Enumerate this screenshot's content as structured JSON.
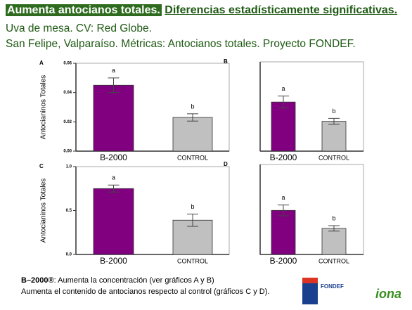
{
  "slide": {
    "title_highlight": "Aumenta antocianos totales.",
    "title_rest": "Diferencias estadísticamente significativas.",
    "line1": "Uva de mesa. CV: Red Globe.",
    "line2": "San Felipe, Valparaíso. Métricas: Antocianos totales. Proyecto FONDEF.",
    "note_bold": "B–2000®",
    "note_1": ": Aumenta la concentración (ver gráficos A y B)",
    "note_2": "Aumenta el contenido de antocianos respecto al control (gráficos C y D).",
    "logo_fondef": "FONDEF",
    "logo_iona": "iona"
  },
  "chart_data": [
    {
      "type": "bar",
      "panel": "A",
      "ylabel": "Antocianinos Totales",
      "categories": [
        "B-2000",
        "CONTROL"
      ],
      "values": [
        0.045,
        0.023
      ],
      "errors": [
        0.005,
        0.0025
      ],
      "letters": [
        "a",
        "b"
      ],
      "colors": [
        "#800080",
        "#c0c0c0"
      ],
      "ylim": [
        0,
        0.06
      ],
      "yticks": [
        {
          "value": 0,
          "label": "0.00"
        },
        {
          "value": 0.02,
          "label": "0.02"
        },
        {
          "value": 0.04,
          "label": "0.04"
        },
        {
          "value": 0.06,
          "label": "0.06"
        }
      ]
    },
    {
      "type": "bar",
      "panel": "B",
      "categories": [
        "B-2000",
        "CONTROL"
      ],
      "values": [
        0.033,
        0.02
      ],
      "errors": [
        0.004,
        0.002
      ],
      "letters": [
        "a",
        "b"
      ],
      "colors": [
        "#800080",
        "#c0c0c0"
      ],
      "ylim": [
        0,
        0.06
      ]
    },
    {
      "type": "bar",
      "panel": "C",
      "ylabel": "Antocianinos Totales",
      "categories": [
        "B-2000",
        "CONTROL"
      ],
      "values": [
        0.75,
        0.39
      ],
      "errors": [
        0.04,
        0.07
      ],
      "letters": [
        "a",
        "b"
      ],
      "colors": [
        "#800080",
        "#c0c0c0"
      ],
      "ylim": [
        0,
        1.0
      ],
      "yticks": [
        {
          "value": 0,
          "label": "0.0"
        },
        {
          "value": 0.5,
          "label": "0.5"
        },
        {
          "value": 1.0,
          "label": "1.0"
        }
      ]
    },
    {
      "type": "bar",
      "panel": "D",
      "categories": [
        "B-2000",
        "CONTROL"
      ],
      "values": [
        0.49,
        0.29
      ],
      "errors": [
        0.06,
        0.03
      ],
      "letters": [
        "a",
        "b"
      ],
      "colors": [
        "#800080",
        "#c0c0c0"
      ],
      "ylim": [
        0,
        1.0
      ]
    }
  ]
}
